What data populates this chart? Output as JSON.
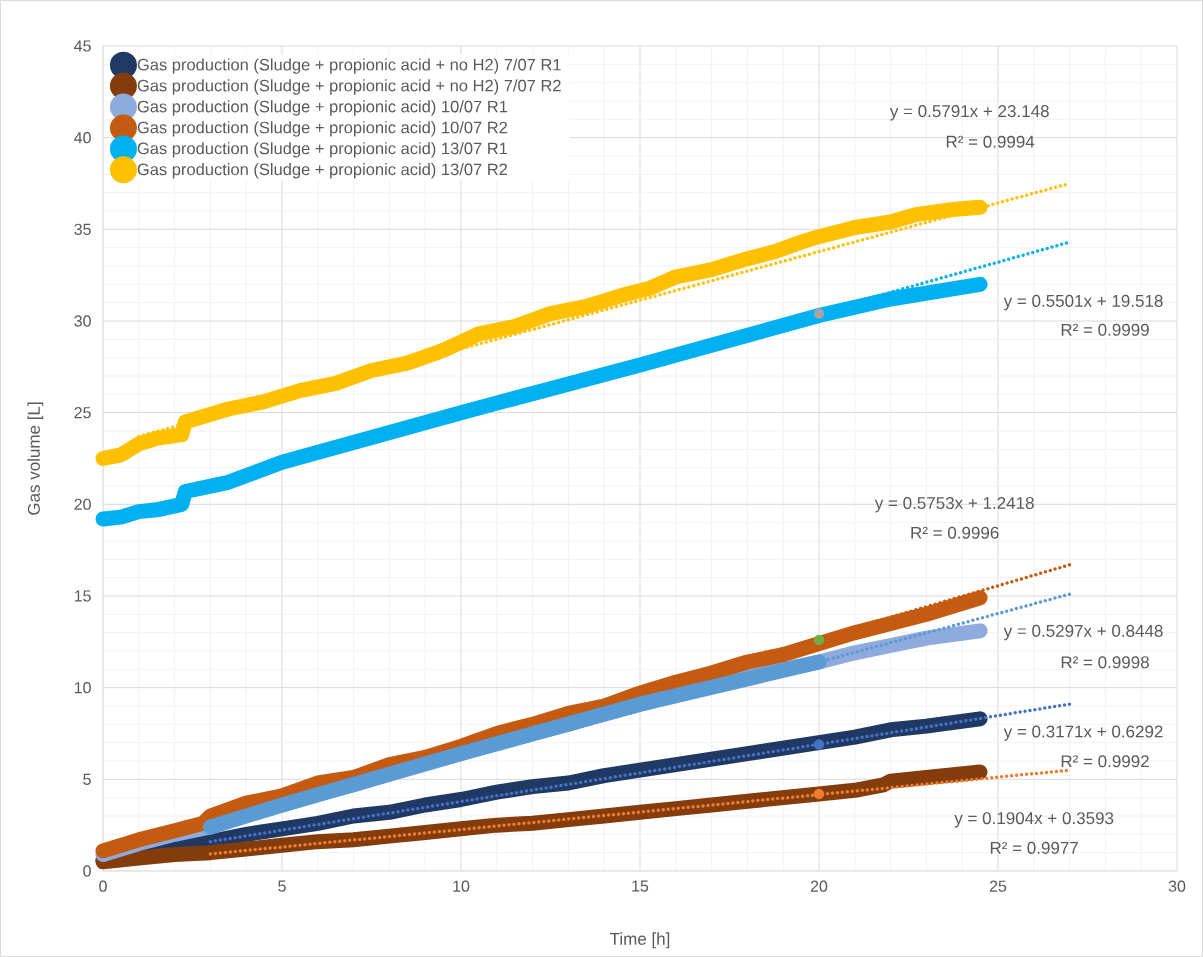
{
  "chart_data": {
    "type": "line",
    "xlabel": "Time [h]",
    "ylabel": "Gas volume [L]",
    "xlim": [
      0,
      30
    ],
    "ylim": [
      0,
      45
    ],
    "xticks": [
      0,
      5,
      10,
      15,
      20,
      25,
      30
    ],
    "yticks": [
      0,
      5,
      10,
      15,
      20,
      25,
      30,
      35,
      40,
      45
    ],
    "grid": true,
    "legend": "top left",
    "line_style": "solid",
    "series": [
      {
        "name": "Gas production (Sludge + propionic acid + no H2) 7/07 R1",
        "color": "#203864",
        "x": [
          0,
          1,
          2,
          3,
          4,
          5,
          6,
          7,
          8,
          9,
          10,
          11,
          12,
          13,
          14,
          15,
          16,
          17,
          18,
          19,
          20,
          21,
          22,
          23,
          24.5
        ],
        "values": [
          0.6,
          1.0,
          1.3,
          1.6,
          2.0,
          2.3,
          2.6,
          3.0,
          3.2,
          3.6,
          3.9,
          4.3,
          4.6,
          4.8,
          5.2,
          5.5,
          5.8,
          6.1,
          6.4,
          6.7,
          7.0,
          7.3,
          7.7,
          7.9,
          8.3
        ]
      },
      {
        "name": "Gas production (Sludge + propionic acid + no H2) 7/07 R2",
        "color": "#843c0c",
        "x": [
          0,
          1,
          2,
          3,
          4,
          5,
          6,
          7,
          8,
          9,
          10,
          11,
          12,
          13,
          14,
          15,
          16,
          17,
          18,
          19,
          20,
          21,
          21.8,
          22,
          23,
          24.5
        ],
        "values": [
          0.5,
          0.7,
          0.9,
          1.0,
          1.2,
          1.4,
          1.6,
          1.7,
          1.9,
          2.1,
          2.3,
          2.5,
          2.6,
          2.8,
          3.0,
          3.2,
          3.4,
          3.6,
          3.8,
          4.0,
          4.2,
          4.4,
          4.7,
          4.9,
          5.1,
          5.4
        ]
      },
      {
        "name": "Gas production (Sludge + propionic acid) 10/07 R1",
        "color": "#8faadc",
        "x": [
          0,
          1,
          2,
          3,
          4,
          5,
          6,
          7,
          8,
          9,
          10,
          11,
          12,
          13,
          14,
          15,
          16,
          17,
          18,
          19,
          20,
          21,
          22,
          23,
          24.5
        ],
        "values": [
          0.9,
          1.5,
          2.0,
          2.4,
          3.2,
          3.6,
          4.2,
          4.7,
          5.3,
          5.9,
          6.4,
          7.0,
          7.5,
          8.0,
          8.6,
          9.1,
          9.6,
          10.1,
          10.6,
          11.0,
          11.4,
          11.9,
          12.3,
          12.7,
          13.1
        ]
      },
      {
        "name": "Gas production (Sludge + propionic acid) 10/07 R2",
        "color": "#c55a11",
        "x": [
          0,
          1,
          2,
          2.8,
          3,
          4,
          5,
          6,
          7,
          8,
          9,
          10,
          11,
          12,
          13,
          14,
          15,
          16,
          17,
          18,
          19,
          20,
          21,
          22,
          23,
          24.5
        ],
        "values": [
          1.1,
          1.7,
          2.2,
          2.6,
          3.0,
          3.7,
          4.1,
          4.8,
          5.1,
          5.8,
          6.2,
          6.8,
          7.5,
          8.0,
          8.6,
          9.0,
          9.7,
          10.3,
          10.8,
          11.4,
          11.8,
          12.4,
          13.0,
          13.5,
          14.0,
          14.9
        ]
      },
      {
        "name": "Gas production (Sludge + propionic acid) 13/07 R1",
        "color": "#00b0f0",
        "x": [
          0,
          0.5,
          1,
          1.5,
          2.2,
          2.3,
          3.5,
          5,
          10,
          15,
          20,
          22,
          24.5
        ],
        "values": [
          19.2,
          19.3,
          19.6,
          19.7,
          20.0,
          20.7,
          21.2,
          22.3,
          25.0,
          27.6,
          30.3,
          31.2,
          32.0
        ]
      },
      {
        "name": "Gas production (Sludge + propionic acid) 13/07 R2",
        "color": "#ffc000",
        "x": [
          0,
          0.5,
          1,
          1.5,
          2.2,
          2.3,
          3.5,
          4.5,
          5.5,
          6.5,
          7.5,
          8.5,
          9.5,
          10.5,
          11.5,
          12.5,
          13.5,
          14.5,
          15.3,
          16,
          17,
          18,
          18.8,
          19.5,
          20,
          21,
          22,
          22.7,
          23.8,
          24.5
        ],
        "values": [
          22.5,
          22.7,
          23.3,
          23.6,
          23.8,
          24.5,
          25.2,
          25.6,
          26.2,
          26.6,
          27.3,
          27.7,
          28.4,
          29.3,
          29.7,
          30.4,
          30.8,
          31.4,
          31.8,
          32.4,
          32.8,
          33.4,
          33.8,
          34.3,
          34.6,
          35.1,
          35.4,
          35.8,
          36.1,
          36.2
        ]
      },
      {
        "color": "#5b9bd5",
        "x": [
          3,
          5,
          10,
          15,
          20
        ],
        "values": [
          2.4,
          3.6,
          6.4,
          9.1,
          11.4
        ]
      },
      {
        "color": "#4472c4",
        "line_style": "dotted",
        "x": [
          3,
          27
        ],
        "values": [
          1.6,
          9.1
        ]
      },
      {
        "color": "#ed7d31",
        "line_style": "dotted",
        "x": [
          3,
          27
        ],
        "values": [
          0.93,
          5.5
        ]
      },
      {
        "color": "#5b9bd5",
        "line_style": "dotted",
        "x": [
          3,
          27
        ],
        "values": [
          2.4,
          15.1
        ]
      },
      {
        "color": "#c55a11",
        "line_style": "dotted",
        "x": [
          3,
          27
        ],
        "values": [
          3.0,
          16.7
        ]
      },
      {
        "color": "#00b0f0",
        "line_style": "dotted",
        "x": [
          2.3,
          27
        ],
        "values": [
          20.8,
          34.3
        ]
      },
      {
        "color": "#ffc000",
        "line_style": "dotted",
        "x": [
          1,
          27
        ],
        "values": [
          23.7,
          37.5
        ]
      },
      {
        "type": "scatter",
        "marker": "circle",
        "x": [
          20,
          20,
          20,
          20
        ],
        "values": [
          30.4,
          12.6,
          6.9,
          4.2
        ],
        "colors": [
          "#a5a5a5",
          "#70ad47",
          "#4472c4",
          "#ed7d31"
        ]
      }
    ],
    "annotations": [
      "y = 0.5791x + 23.148",
      "R² = 0.9994",
      "y = 0.5501x + 19.518",
      "R² = 0.9999",
      "y = 0.5753x + 1.2418",
      "R² = 0.9996",
      "y = 0.5297x + 0.8448",
      "R² = 0.9998",
      "y = 0.3171x + 0.6292",
      "R² = 0.9992",
      "y = 0.1904x + 0.3593",
      "R² = 0.9977"
    ]
  }
}
